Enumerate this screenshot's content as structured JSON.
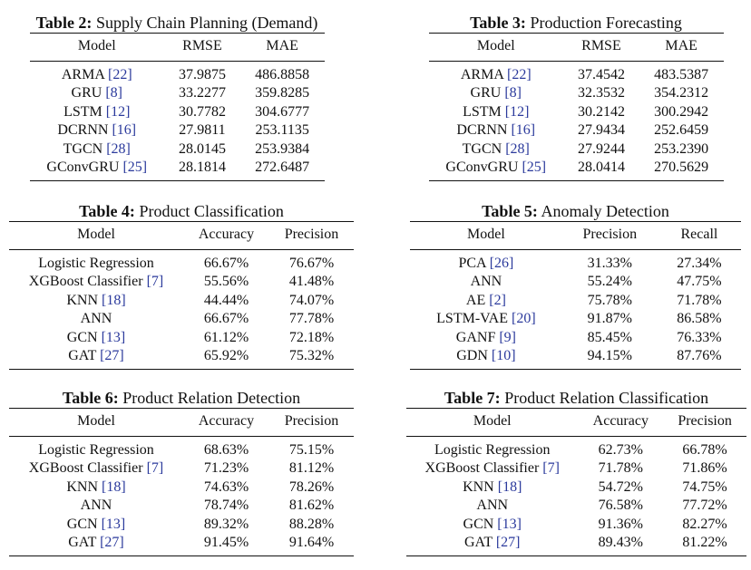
{
  "tables": [
    {
      "label": "Table 2:",
      "title": "Supply Chain Planning (Demand)",
      "headers": [
        "Model",
        "RMSE",
        "MAE"
      ],
      "rows": [
        {
          "model": "ARMA",
          "ref": "[22]",
          "v1": "37.9875",
          "v2": "486.8858"
        },
        {
          "model": "GRU",
          "ref": "[8]",
          "v1": "33.2277",
          "v2": "359.8285"
        },
        {
          "model": "LSTM",
          "ref": "[12]",
          "v1": "30.7782",
          "v2": "304.6777"
        },
        {
          "model": "DCRNN",
          "ref": "[16]",
          "v1": "27.9811",
          "v2": "253.1135"
        },
        {
          "model": "TGCN",
          "ref": "[28]",
          "v1": "28.0145",
          "v2": "253.9384"
        },
        {
          "model": "GConvGRU",
          "ref": "[25]",
          "v1": "28.1814",
          "v2": "272.6487"
        }
      ]
    },
    {
      "label": "Table 3:",
      "title": "Production Forecasting",
      "headers": [
        "Model",
        "RMSE",
        "MAE"
      ],
      "rows": [
        {
          "model": "ARMA",
          "ref": "[22]",
          "v1": "37.4542",
          "v2": "483.5387"
        },
        {
          "model": "GRU",
          "ref": "[8]",
          "v1": "32.3532",
          "v2": "354.2312"
        },
        {
          "model": "LSTM",
          "ref": "[12]",
          "v1": "30.2142",
          "v2": "300.2942"
        },
        {
          "model": "DCRNN",
          "ref": "[16]",
          "v1": "27.9434",
          "v2": "252.6459"
        },
        {
          "model": "TGCN",
          "ref": "[28]",
          "v1": "27.9244",
          "v2": "253.2390"
        },
        {
          "model": "GConvGRU",
          "ref": "[25]",
          "v1": "28.0414",
          "v2": "270.5629"
        }
      ]
    },
    {
      "label": "Table 4:",
      "title": "Product Classification",
      "headers": [
        "Model",
        "Accuracy",
        "Precision"
      ],
      "rows": [
        {
          "model": "Logistic Regression",
          "ref": "",
          "v1": "66.67%",
          "v2": "76.67%"
        },
        {
          "model": "XGBoost Classifier",
          "ref": "[7]",
          "v1": "55.56%",
          "v2": "41.48%"
        },
        {
          "model": "KNN",
          "ref": "[18]",
          "v1": "44.44%",
          "v2": "74.07%"
        },
        {
          "model": "ANN",
          "ref": "",
          "v1": "66.67%",
          "v2": "77.78%"
        },
        {
          "model": "GCN",
          "ref": "[13]",
          "v1": "61.12%",
          "v2": "72.18%"
        },
        {
          "model": "GAT",
          "ref": "[27]",
          "v1": "65.92%",
          "v2": "75.32%"
        }
      ]
    },
    {
      "label": "Table 5:",
      "title": "Anomaly Detection",
      "headers": [
        "Model",
        "Precision",
        "Recall"
      ],
      "rows": [
        {
          "model": "PCA",
          "ref": "[26]",
          "v1": "31.33%",
          "v2": "27.34%"
        },
        {
          "model": "ANN",
          "ref": "",
          "v1": "55.24%",
          "v2": "47.75%"
        },
        {
          "model": "AE",
          "ref": "[2]",
          "v1": "75.78%",
          "v2": "71.78%"
        },
        {
          "model": "LSTM-VAE",
          "ref": "[20]",
          "v1": "91.87%",
          "v2": "86.58%"
        },
        {
          "model": "GANF",
          "ref": "[9]",
          "v1": "85.45%",
          "v2": "76.33%"
        },
        {
          "model": "GDN",
          "ref": "[10]",
          "v1": "94.15%",
          "v2": "87.76%"
        }
      ]
    },
    {
      "label": "Table 6:",
      "title": "Product Relation Detection",
      "headers": [
        "Model",
        "Accuracy",
        "Precision"
      ],
      "rows": [
        {
          "model": "Logistic Regression",
          "ref": "",
          "v1": "68.63%",
          "v2": "75.15%"
        },
        {
          "model": "XGBoost Classifier",
          "ref": "[7]",
          "v1": "71.23%",
          "v2": "81.12%"
        },
        {
          "model": "KNN",
          "ref": "[18]",
          "v1": "74.63%",
          "v2": "78.26%"
        },
        {
          "model": "ANN",
          "ref": "",
          "v1": "78.74%",
          "v2": "81.62%"
        },
        {
          "model": "GCN",
          "ref": "[13]",
          "v1": "89.32%",
          "v2": "88.28%"
        },
        {
          "model": "GAT",
          "ref": "[27]",
          "v1": "91.45%",
          "v2": "91.64%"
        }
      ]
    },
    {
      "label": "Table 7:",
      "title": "Product Relation Classification",
      "headers": [
        "Model",
        "Accuracy",
        "Precision"
      ],
      "rows": [
        {
          "model": "Logistic Regression",
          "ref": "",
          "v1": "62.73%",
          "v2": "66.78%"
        },
        {
          "model": "XGBoost Classifier",
          "ref": "[7]",
          "v1": "71.78%",
          "v2": "71.86%"
        },
        {
          "model": "KNN",
          "ref": "[18]",
          "v1": "54.72%",
          "v2": "74.75%"
        },
        {
          "model": "ANN",
          "ref": "",
          "v1": "76.58%",
          "v2": "77.72%"
        },
        {
          "model": "GCN",
          "ref": "[13]",
          "v1": "91.36%",
          "v2": "82.27%"
        },
        {
          "model": "GAT",
          "ref": "[27]",
          "v1": "89.43%",
          "v2": "81.22%"
        }
      ]
    }
  ],
  "colors": {
    "text": "#111111",
    "citation": "#2b3a9c",
    "rule": "#111111"
  }
}
